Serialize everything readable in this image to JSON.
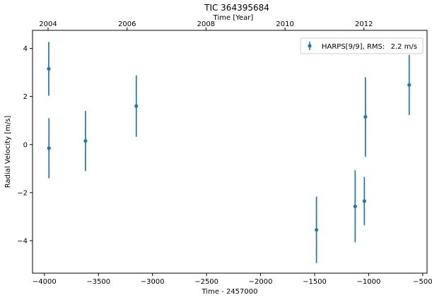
{
  "chart_data": {
    "type": "scatter",
    "title": "TIC 364395684",
    "xlabel": "Time - 2457000",
    "ylabel": "Radial Velocity [m/s]",
    "top_xlabel": "Time [Year]",
    "xlim": [
      -4110,
      -460
    ],
    "ylim": [
      -5.35,
      4.75
    ],
    "x_ticks": [
      -4000,
      -3500,
      -3000,
      -2500,
      -2000,
      -1500,
      -1000,
      -500
    ],
    "x_tick_labels": [
      "−4000",
      "−3500",
      "−3000",
      "−2500",
      "−2000",
      "−1500",
      "−1000",
      "−500"
    ],
    "y_ticks": [
      -4,
      -2,
      0,
      2,
      4
    ],
    "y_tick_labels": [
      "−4",
      "−2",
      "0",
      "2",
      "4"
    ],
    "top_ticks": [
      -3966,
      -3235,
      -2505,
      -1774,
      -1044
    ],
    "top_tick_labels": [
      "2004",
      "2006",
      "2008",
      "2010",
      "2012"
    ],
    "grid": false,
    "legend_position": "top-right",
    "series": [
      {
        "name": "HARPS[9/9], RMS:",
        "rms": "2.2 m/s",
        "color": "#1f77b4",
        "x": [
          -3960,
          -3958,
          -3620,
          -3150,
          -1483,
          -1125,
          -1040,
          -1030,
          -625
        ],
        "y": [
          3.15,
          -0.15,
          0.15,
          1.6,
          -3.55,
          -2.57,
          -2.35,
          1.15,
          2.48
        ],
        "err": [
          1.12,
          1.25,
          1.25,
          1.28,
          1.38,
          1.5,
          1.0,
          1.65,
          1.25
        ]
      }
    ]
  }
}
